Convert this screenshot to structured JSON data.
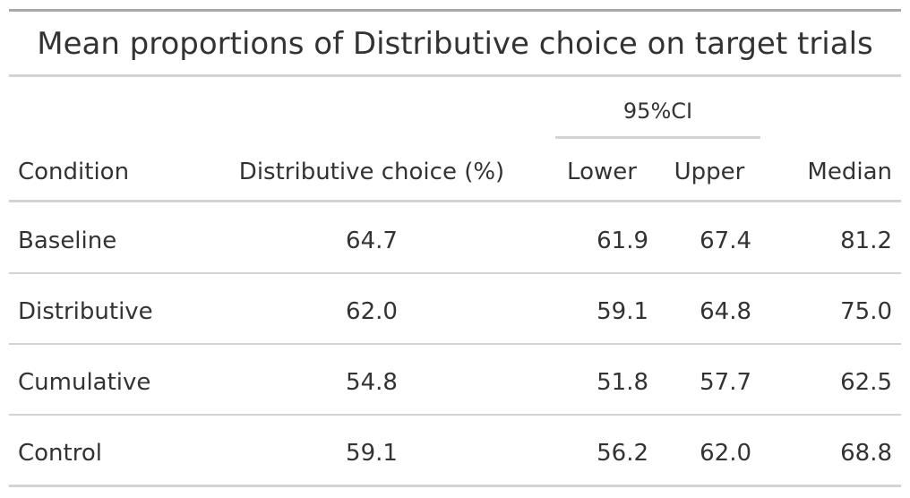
{
  "table": {
    "title": "Mean proportions of Distributive choice on target trials",
    "spanner": "95%CI",
    "columns": {
      "condition": "Condition",
      "distributive": "Distributive choice (%)",
      "lower": "Lower",
      "upper": "Upper",
      "median": "Median"
    },
    "rows": [
      {
        "condition": "Baseline",
        "distributive": "64.7",
        "lower": "61.9",
        "upper": "67.4",
        "median": "81.2"
      },
      {
        "condition": "Distributive",
        "distributive": "62.0",
        "lower": "59.1",
        "upper": "64.8",
        "median": "75.0"
      },
      {
        "condition": "Cumulative",
        "distributive": "54.8",
        "lower": "51.8",
        "upper": "57.7",
        "median": "62.5"
      },
      {
        "condition": "Control",
        "distributive": "59.1",
        "lower": "56.2",
        "upper": "62.0",
        "median": "68.8"
      }
    ]
  }
}
